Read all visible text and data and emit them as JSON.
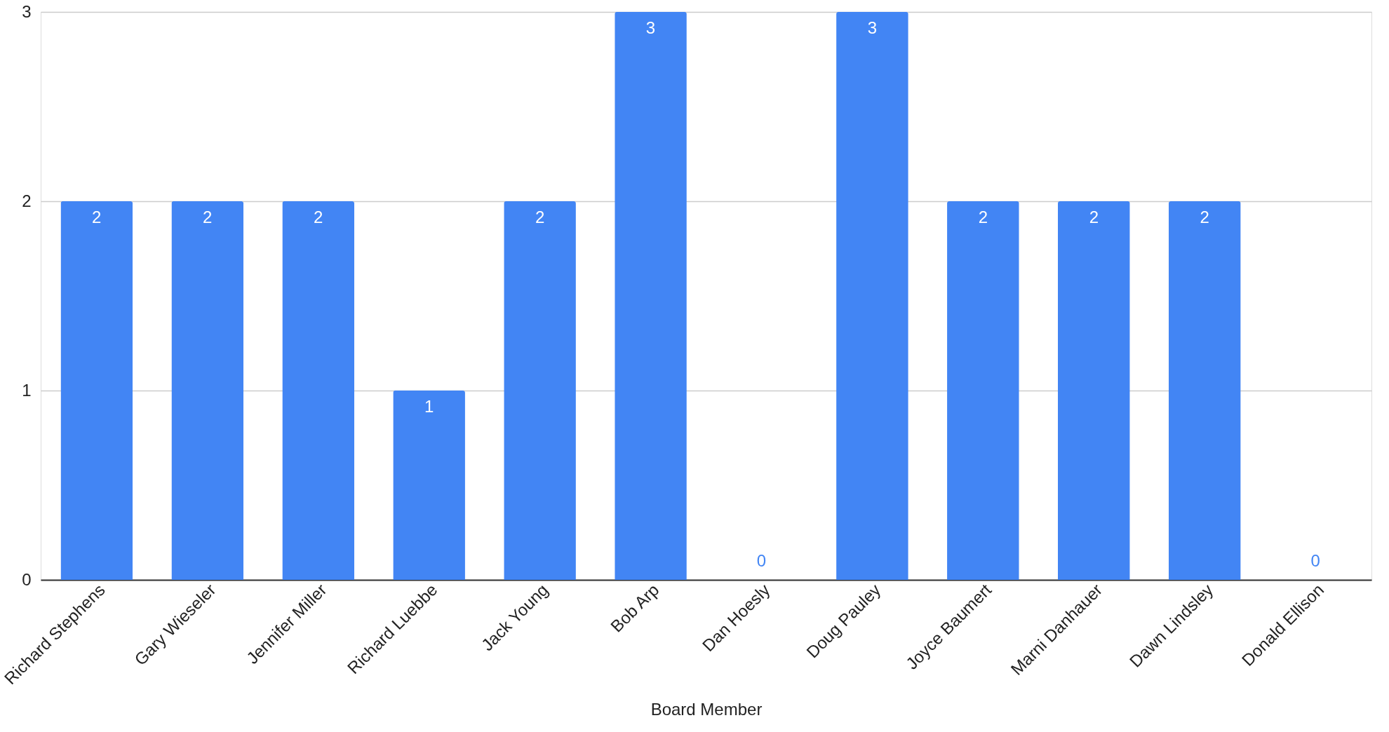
{
  "chart_data": {
    "type": "bar",
    "xlabel": "Board Member",
    "categories": [
      "Richard Stephens",
      "Gary Wieseler",
      "Jennifer Miller",
      "Richard Luebbe",
      "Jack Young",
      "Bob Arp",
      "Dan Hoesly",
      "Doug Pauley",
      "Joyce Baumert",
      "Marni Danhauer",
      "Dawn Lindsley",
      "Donald Ellison"
    ],
    "values": [
      2,
      2,
      2,
      1,
      2,
      3,
      0,
      3,
      2,
      2,
      2,
      0
    ],
    "color": "#4285f4",
    "ylim": [
      0,
      3
    ],
    "yticks": [
      0,
      1,
      2,
      3
    ],
    "grid": "y",
    "data_labels": true
  }
}
